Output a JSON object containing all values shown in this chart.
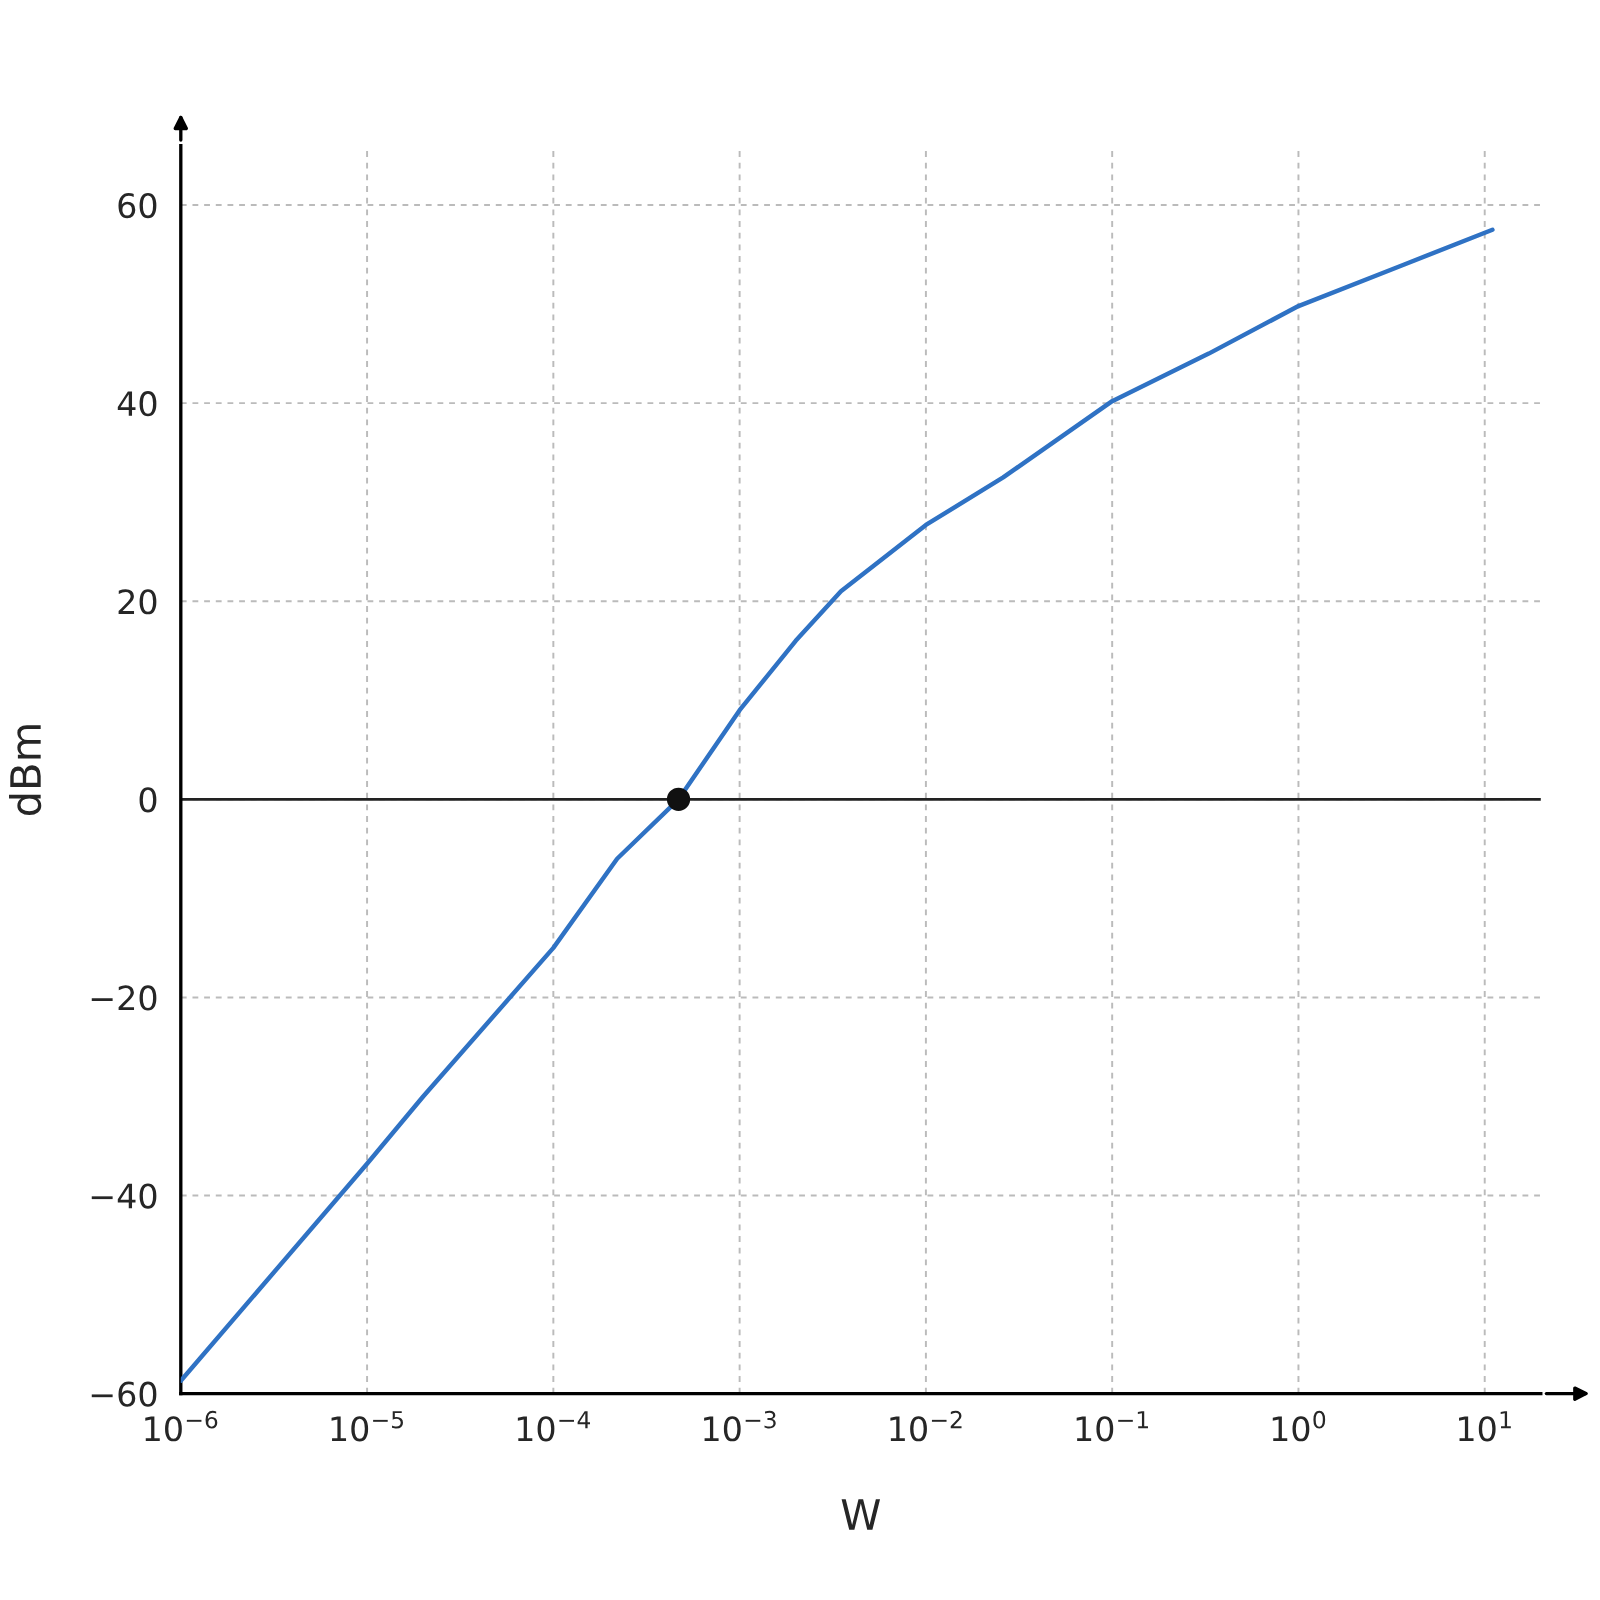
{
  "chart_data": {
    "type": "line",
    "xlabel": "W",
    "ylabel": "dBm",
    "log": "x",
    "grid": true,
    "marker": "none",
    "line_style": "solid",
    "series": [
      {
        "color": "#2f72c4",
        "x": [
          1e-06,
          1e-05,
          2e-05,
          0.0001,
          0.00022,
          0.00047,
          0.001,
          0.002,
          0.0035,
          0.01,
          0.026,
          0.1,
          0.33,
          1,
          3.7,
          11
        ],
        "values": [
          -58.7,
          -36.8,
          -30,
          -15,
          -6,
          0,
          9,
          16,
          21,
          27.7,
          32.5,
          40.2,
          45,
          49.8,
          54,
          57.5
        ]
      },
      {
        "type": "scatter",
        "color": "#111111",
        "marker": "circle",
        "x": [
          0.00047
        ],
        "values": [
          0
        ]
      }
    ],
    "ref_lines": [
      {
        "axis": "y",
        "value": 0,
        "color": "#222222",
        "line_style": "solid"
      }
    ],
    "xlim": [
      1e-06,
      20
    ],
    "ylim": [
      -60,
      66
    ],
    "xticks": [
      {
        "value": 1e-06,
        "label": "10$^{−6}$"
      },
      {
        "value": 1e-05,
        "label": "10$^{−5}$"
      },
      {
        "value": 0.0001,
        "label": "10$^{−4}$"
      },
      {
        "value": 0.001,
        "label": "10$^{−3}$"
      },
      {
        "value": 0.01,
        "label": "10$^{−2}$"
      },
      {
        "value": 0.1,
        "label": "10$^{−1}$"
      },
      {
        "value": 1,
        "label": "10$^{0}$"
      },
      {
        "value": 10,
        "label": "10$^{1}$"
      }
    ],
    "yticks": [
      {
        "value": -60,
        "label": "−60"
      },
      {
        "value": -40,
        "label": "−40"
      },
      {
        "value": -20,
        "label": "−20"
      },
      0,
      20,
      40,
      60
    ]
  }
}
